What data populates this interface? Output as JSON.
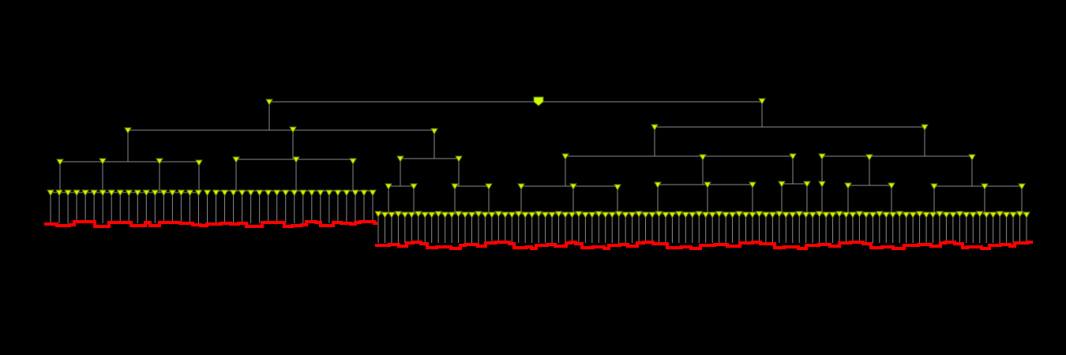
{
  "colors": {
    "background": "#000000",
    "edge": "#8a8a8a",
    "node_fill": "#d4f000",
    "node_stroke": "#6f7d00",
    "root_fill": "#c8ff00",
    "leaf_bar": "#ff0000"
  },
  "tree": {
    "root_marker": "filled-shield",
    "node_marker": "downward-triangle",
    "leaf_indicator": "red-step-bar"
  }
}
